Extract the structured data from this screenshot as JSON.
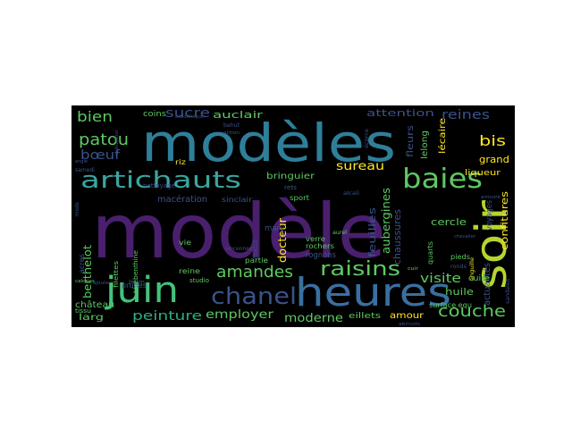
{
  "figure": {
    "background": "#000000",
    "palette": [
      "#440154",
      "#3b528b",
      "#21918c",
      "#5ec962",
      "#fde725"
    ]
  },
  "words": [
    {
      "text": "modèle",
      "color": "#4a1f6e"
    },
    {
      "text": "modèles",
      "color": "#2e7f9a"
    },
    {
      "text": "heures",
      "color": "#3a6fa0"
    },
    {
      "text": "soir",
      "color": "#b5d432"
    },
    {
      "text": "juin",
      "color": "#44c27a"
    },
    {
      "text": "artichauts",
      "color": "#3aa5a0"
    },
    {
      "text": "baies",
      "color": "#5ec962"
    },
    {
      "text": "raisins",
      "color": "#5ec962"
    },
    {
      "text": "chanel",
      "color": "#3b528b"
    },
    {
      "text": "amandes",
      "color": "#5ec962"
    },
    {
      "text": "patou",
      "color": "#5ec962"
    },
    {
      "text": "bien",
      "color": "#5ec962"
    },
    {
      "text": "sucre",
      "color": "#3b528b"
    },
    {
      "text": "bœuf",
      "color": "#3b528b"
    },
    {
      "text": "couche",
      "color": "#5ec962"
    },
    {
      "text": "peinture",
      "color": "#2ab07f"
    },
    {
      "text": "employer",
      "color": "#5ec962"
    },
    {
      "text": "moderne",
      "color": "#5ec962"
    },
    {
      "text": "visite",
      "color": "#5ec962"
    },
    {
      "text": "sureau",
      "color": "#fde725"
    },
    {
      "text": "bis",
      "color": "#fde725"
    },
    {
      "text": "grand",
      "color": "#fde725"
    },
    {
      "text": "reines",
      "color": "#3b528b"
    },
    {
      "text": "attention",
      "color": "#3b528b"
    },
    {
      "text": "auclair",
      "color": "#5ec962"
    },
    {
      "text": "aubergines",
      "color": "#5ec962"
    },
    {
      "text": "feuilles",
      "color": "#3b528b"
    },
    {
      "text": "chaussures",
      "color": "#3b528b"
    },
    {
      "text": "docteur",
      "color": "#fde725"
    },
    {
      "text": "huile",
      "color": "#5ec962"
    },
    {
      "text": "cercle",
      "color": "#5ec962"
    },
    {
      "text": "château",
      "color": "#5ec962"
    },
    {
      "text": "amour",
      "color": "#fde725"
    },
    {
      "text": "confitures",
      "color": "#fde725"
    },
    {
      "text": "bringuier",
      "color": "#5ec962"
    },
    {
      "text": "berthelot",
      "color": "#5ec962"
    },
    {
      "text": "actualités",
      "color": "#3b528b"
    },
    {
      "text": "cuire",
      "color": "#5ec962"
    },
    {
      "text": "fleurs",
      "color": "#3b528b"
    },
    {
      "text": "macération",
      "color": "#3b528b"
    },
    {
      "text": "eillets",
      "color": "#5ec962"
    },
    {
      "text": "larg",
      "color": "#5ec962"
    },
    {
      "text": "lécaire",
      "color": "#fde725"
    },
    {
      "text": "liqueur",
      "color": "#fde725"
    },
    {
      "text": "surface equ",
      "color": "#5ec962"
    },
    {
      "text": "voyages",
      "color": "#3b528b"
    },
    {
      "text": "rognons",
      "color": "#3b528b"
    },
    {
      "text": "coins",
      "color": "#5ec962"
    },
    {
      "text": "lelong",
      "color": "#5ec962"
    },
    {
      "text": "mary",
      "color": "#3b528b"
    },
    {
      "text": "partie",
      "color": "#5ec962"
    },
    {
      "text": "reine",
      "color": "#5ec962"
    },
    {
      "text": "vie",
      "color": "#5ec962"
    },
    {
      "text": "prunes",
      "color": "#3b528b"
    },
    {
      "text": "sinclair",
      "color": "#3b528b"
    },
    {
      "text": "sport",
      "color": "#5ec962"
    },
    {
      "text": "verre",
      "color": "#5ec962"
    },
    {
      "text": "rochers",
      "color": "#5ec962"
    },
    {
      "text": "quarts",
      "color": "#5ec962"
    },
    {
      "text": "pieds",
      "color": "#5ec962"
    },
    {
      "text": "matin",
      "color": "#3b528b"
    },
    {
      "text": "acres",
      "color": "#3b528b"
    },
    {
      "text": "riz",
      "color": "#fde725"
    },
    {
      "text": "tissu",
      "color": "#5ec962"
    },
    {
      "text": "nettoyage",
      "color": "#3b528b"
    },
    {
      "text": "beim",
      "color": "#3b528b"
    },
    {
      "text": "filettes",
      "color": "#5ec962"
    },
    {
      "text": "térébenthine",
      "color": "#5ec962"
    },
    {
      "text": "studio",
      "color": "#5ec962"
    },
    {
      "text": "samedi",
      "color": "#3b528b"
    },
    {
      "text": "vincennes",
      "color": "#3b528b"
    },
    {
      "text": "alcali",
      "color": "#3b528b"
    },
    {
      "text": "anguille",
      "color": "#fde725"
    },
    {
      "text": "sandales",
      "color": "#3b528b"
    },
    {
      "text": "mode",
      "color": "#3b528b"
    },
    {
      "text": "ronds",
      "color": "#3b528b"
    },
    {
      "text": "bahut",
      "color": "#3b528b"
    },
    {
      "text": "action",
      "color": "#3b528b"
    },
    {
      "text": "écorce",
      "color": "#3b528b"
    },
    {
      "text": "angle",
      "color": "#3b528b"
    },
    {
      "text": "aujourdhui",
      "color": "#3b528b"
    },
    {
      "text": "bibliothèque",
      "color": "#3b528b"
    },
    {
      "text": "chevalier",
      "color": "#3b528b"
    },
    {
      "text": "cuir",
      "color": "#5ec962"
    },
    {
      "text": "armoire",
      "color": "#3b528b"
    },
    {
      "text": "calories",
      "color": "#5ec962"
    },
    {
      "text": "ajoute",
      "color": "#3b528b"
    },
    {
      "text": "abricots",
      "color": "#3b528b"
    },
    {
      "text": "aurel",
      "color": "#5ec962"
    },
    {
      "text": "rets",
      "color": "#3b528b"
    }
  ]
}
